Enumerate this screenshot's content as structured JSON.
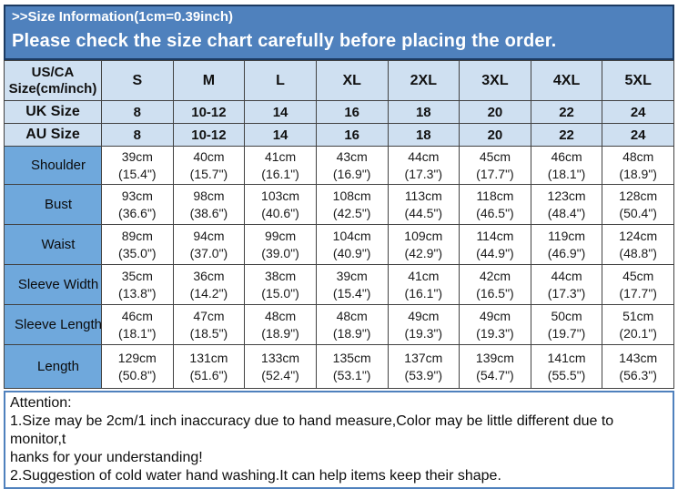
{
  "header": {
    "title": ">>Size Information(1cm=0.39inch)",
    "subtitle": "Please check the size chart carefully before placing the order."
  },
  "table": {
    "corner_line1": "US/CA",
    "corner_line2": "Size(cm/inch)",
    "sizes": [
      "S",
      "M",
      "L",
      "XL",
      "2XL",
      "3XL",
      "4XL",
      "5XL"
    ],
    "uk_label": "UK Size",
    "uk": [
      "8",
      "10-12",
      "14",
      "16",
      "18",
      "20",
      "22",
      "24"
    ],
    "au_label": "AU Size",
    "au": [
      "8",
      "10-12",
      "14",
      "16",
      "18",
      "20",
      "22",
      "24"
    ],
    "rows": [
      {
        "label": "Shoulder",
        "cm": [
          "39cm",
          "40cm",
          "41cm",
          "43cm",
          "44cm",
          "45cm",
          "46cm",
          "48cm"
        ],
        "inch": [
          "(15.4\")",
          "(15.7\")",
          "(16.1\")",
          "(16.9\")",
          "(17.3\")",
          "(17.7\")",
          "(18.1\")",
          "(18.9\")"
        ]
      },
      {
        "label": "Bust",
        "cm": [
          "93cm",
          "98cm",
          "103cm",
          "108cm",
          "113cm",
          "118cm",
          "123cm",
          "128cm"
        ],
        "inch": [
          "(36.6\")",
          "(38.6\")",
          "(40.6\")",
          "(42.5\")",
          "(44.5\")",
          "(46.5\")",
          "(48.4\")",
          "(50.4\")"
        ]
      },
      {
        "label": "Waist",
        "cm": [
          "89cm",
          "94cm",
          "99cm",
          "104cm",
          "109cm",
          "114cm",
          "119cm",
          "124cm"
        ],
        "inch": [
          "(35.0\")",
          "(37.0\")",
          "(39.0\")",
          "(40.9\")",
          "(42.9\")",
          "(44.9\")",
          "(46.9\")",
          "(48.8\")"
        ]
      },
      {
        "label": "Sleeve Width",
        "cm": [
          "35cm",
          "36cm",
          "38cm",
          "39cm",
          "41cm",
          "42cm",
          "44cm",
          "45cm"
        ],
        "inch": [
          "(13.8\")",
          "(14.2\")",
          "(15.0\")",
          "(15.4\")",
          "(16.1\")",
          "(16.5\")",
          "(17.3\")",
          "(17.7\")"
        ]
      },
      {
        "label": "Sleeve Length",
        "cm": [
          "46cm",
          "47cm",
          "48cm",
          "48cm",
          "49cm",
          "49cm",
          "50cm",
          "51cm"
        ],
        "inch": [
          "(18.1\")",
          "(18.5\")",
          "(18.9\")",
          "(18.9\")",
          "(19.3\")",
          "(19.3\")",
          "(19.7\")",
          "(20.1\")"
        ]
      },
      {
        "label": "Length",
        "cm": [
          "129cm",
          "131cm",
          "133cm",
          "135cm",
          "137cm",
          "139cm",
          "141cm",
          "143cm"
        ],
        "inch": [
          "(50.8\")",
          "(51.6\")",
          "(52.4\")",
          "(53.1\")",
          "(53.9\")",
          "(54.7\")",
          "(55.5\")",
          "(56.3\")"
        ]
      }
    ]
  },
  "attention": {
    "lines": [
      "Attention:",
      "1.Size may be 2cm/1 inch inaccuracy due to hand measure,Color may be little different due to monitor,t",
      "hanks for your understanding!",
      "2.Suggestion of cold water hand washing.It can help items keep their shape."
    ]
  },
  "colors": {
    "header_blue": "#4f81bd",
    "header_border_navy": "#1c3a61",
    "light_blue_cell": "#cfe0f1",
    "label_column_blue": "#6fa8dc",
    "grid_line": "#424242",
    "attention_border_blue": "#4f81bd"
  }
}
